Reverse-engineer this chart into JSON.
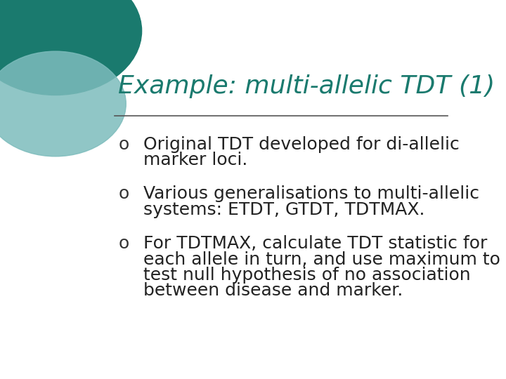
{
  "title": "Example: multi-allelic TDT (1)",
  "title_color": "#1a7a6e",
  "title_fontsize": 26,
  "line_color": "#555555",
  "bullet_color": "#333333",
  "bullet_char": "o",
  "bullet_fontsize": 18,
  "text_fontsize": 18,
  "text_color": "#222222",
  "bullets": [
    [
      "Original TDT developed for di-allelic",
      "marker loci."
    ],
    [
      "Various generalisations to multi-allelic",
      "systems: ETDT, GTDT, TDTMAX."
    ],
    [
      "For TDTMAX, calculate TDT statistic for",
      "each allele in turn, and use maximum to",
      "test null hypothesis of no association",
      "between disease and marker."
    ]
  ],
  "circle_large_color": "#1a7a6e",
  "circle_small_color": "#7dbcbc",
  "slide_bg": "#ffffff"
}
